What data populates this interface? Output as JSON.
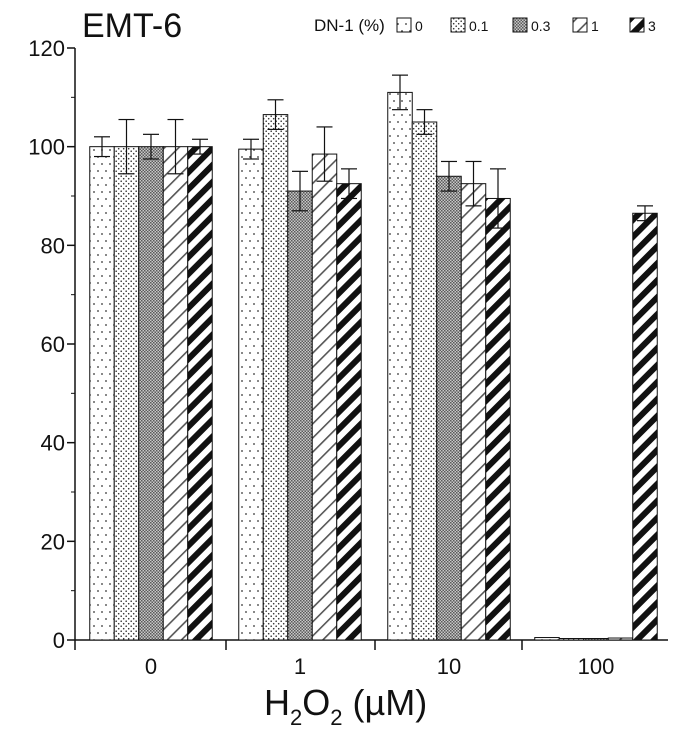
{
  "chart_data": {
    "type": "bar",
    "title": "EMT-6",
    "legend_title": "DN-1 (%)",
    "legend_position": "top-right",
    "xlabel": {
      "main": "H",
      "sub1": "2",
      "mid": "O",
      "sub2": "2",
      "unit": " (µM)"
    },
    "ylabel": "",
    "ylim": [
      0,
      120
    ],
    "yticks": [
      "0",
      "20",
      "40",
      "60",
      "80",
      "100",
      "120"
    ],
    "categories": [
      "0",
      "1",
      "10",
      "100"
    ],
    "series": [
      {
        "name": "0",
        "pattern": "dots-sparse",
        "values": [
          100,
          99.5,
          111,
          0.5
        ],
        "errors": [
          2,
          2,
          3.5,
          0.3
        ]
      },
      {
        "name": "0.1",
        "pattern": "dots-dense",
        "values": [
          100,
          106.5,
          105,
          0.3
        ],
        "errors": [
          5.5,
          3,
          2.5,
          0.2
        ]
      },
      {
        "name": "0.3",
        "pattern": "checker",
        "values": [
          100,
          91,
          94,
          0.2
        ],
        "errors": [
          2.5,
          4,
          3,
          0.2
        ]
      },
      {
        "name": "1",
        "pattern": "diag-thin",
        "values": [
          100,
          98.5,
          92.5,
          0.4
        ],
        "errors": [
          5.5,
          5.5,
          4.5,
          0.3
        ]
      },
      {
        "name": "3",
        "pattern": "diag-thick",
        "values": [
          100,
          92.5,
          89.5,
          86.5
        ],
        "errors": [
          1.5,
          3,
          6,
          1.5
        ]
      }
    ]
  }
}
